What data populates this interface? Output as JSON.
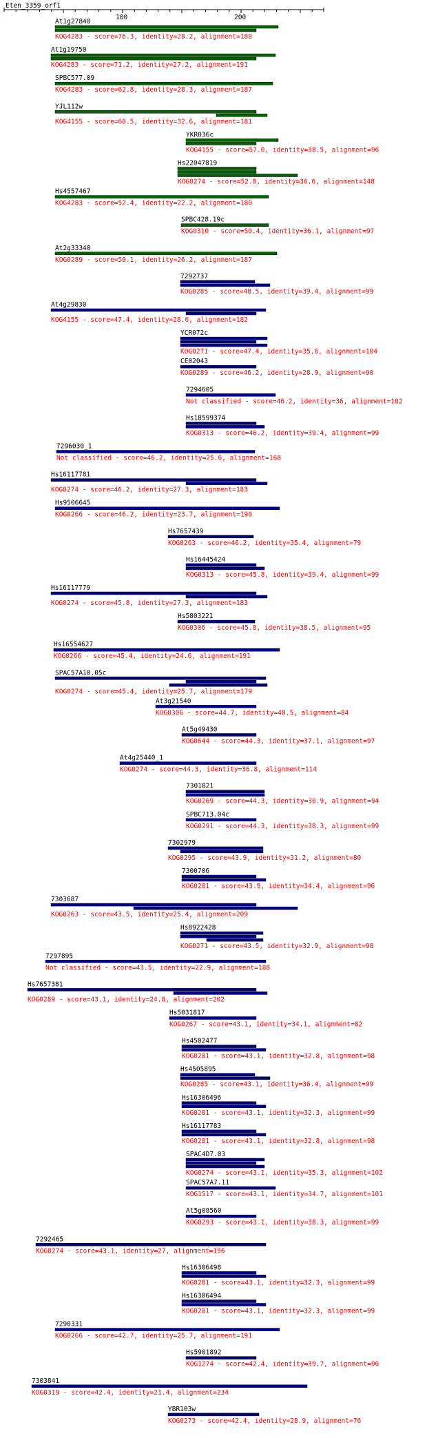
{
  "query": {
    "name": "Eten_3359_orf1",
    "ticks": [
      "100",
      "200"
    ]
  },
  "colors": {
    "axis": "#000000",
    "label": "#000000",
    "detail": "#ff0000",
    "bar_green": "#006400",
    "bar_blue": "#00008b"
  },
  "hits": [
    {
      "name": "At1g27840",
      "detail": "KOG4283 - score=76.3, identity=28.2, alignment=188",
      "color": "green",
      "lbl": 80,
      "bars": [
        [
          80,
          404,
          2
        ],
        [
          80,
          372,
          1
        ]
      ]
    },
    {
      "name": "At1g19750",
      "detail": "KOG4283 - score=71.2, identity=27.2, alignment=191",
      "color": "green",
      "lbl": 74,
      "bars": [
        [
          74,
          400,
          2
        ],
        [
          74,
          372,
          1
        ]
      ]
    },
    {
      "name": "SPBC577.09",
      "detail": "KOG4283 - score=62.8, identity=28.3, alignment=187",
      "color": "green",
      "lbl": 80,
      "bars": [
        [
          80,
          396,
          1
        ]
      ]
    },
    {
      "name": "YJL112w",
      "detail": "KOG4155 - score=60.5, identity=32.6, alignment=181",
      "color": "green",
      "lbl": 80,
      "bars": [
        [
          80,
          372,
          1
        ],
        [
          314,
          388,
          2
        ]
      ]
    },
    {
      "name": "YKR036c",
      "detail": "KOG4155 - score=57.0, identity=38.5, alignment=96",
      "color": "green",
      "lbl": 270,
      "bars": [
        [
          270,
          404,
          1
        ],
        [
          270,
          372,
          2
        ]
      ]
    },
    {
      "name": "Hs22047819",
      "detail": "KOG0274 - score=52.8, identity=36.6, alignment=148",
      "color": "green",
      "lbl": 258,
      "bars": [
        [
          258,
          372,
          1
        ],
        [
          258,
          372,
          1
        ],
        [
          258,
          432,
          1
        ]
      ]
    },
    {
      "name": "Hs4557467",
      "detail": "KOG4283 - score=52.4, identity=22.2, alignment=180",
      "color": "green",
      "lbl": 80,
      "bars": [
        [
          80,
          390,
          1
        ]
      ]
    },
    {
      "name": "SPBC428.19c",
      "detail": "KOG0310 - score=50.4, identity=36.1, alignment=97",
      "color": "green",
      "lbl": 263,
      "bars": [
        [
          263,
          390,
          1
        ]
      ]
    },
    {
      "name": "At2g33340",
      "detail": "KOG0289 - score=50.1, identity=26.2, alignment=187",
      "color": "green",
      "lbl": 80,
      "bars": [
        [
          80,
          402,
          1
        ]
      ]
    },
    {
      "name": "7292737",
      "detail": "KOG0285 - score=48.5, identity=39.4, alignment=99",
      "color": "blue",
      "lbl": 262,
      "bars": [
        [
          262,
          370,
          1
        ],
        [
          262,
          392,
          1
        ]
      ]
    },
    {
      "name": "At4g29830",
      "detail": "KOG4155 - score=47.4, identity=28.6, alignment=182",
      "color": "blue",
      "lbl": 74,
      "bars": [
        [
          74,
          386,
          1
        ],
        [
          270,
          372,
          1
        ]
      ]
    },
    {
      "name": "YCR072c",
      "detail": "KOG0271 - score=47.4, identity=35.6, alignment=104",
      "color": "blue",
      "lbl": 262,
      "bars": [
        [
          262,
          388,
          1
        ],
        [
          262,
          372,
          1
        ],
        [
          262,
          388,
          1
        ]
      ]
    },
    {
      "name": "CE02043",
      "detail": "KOG0289 - score=46.2, identity=28.9, alignment=90",
      "color": "blue",
      "lbl": 262,
      "bars": [
        [
          262,
          372,
          1
        ]
      ]
    },
    {
      "name": "7294605",
      "detail": "Not classified - score=46.2, identity=36, alignment=102",
      "color": "blue",
      "lbl": 270,
      "bars": [
        [
          270,
          400,
          1
        ]
      ]
    },
    {
      "name": "Hs18599374",
      "detail": "KOG0313 - score=46.2, identity=39.4, alignment=99",
      "color": "blue",
      "lbl": 270,
      "bars": [
        [
          270,
          372,
          1
        ],
        [
          270,
          384,
          1
        ]
      ]
    },
    {
      "name": "7296030_1",
      "detail": "Not classified - score=46.2, identity=25.6, alignment=168",
      "color": "blue",
      "lbl": 82,
      "bars": [
        [
          82,
          370,
          1
        ]
      ]
    },
    {
      "name": "Hs16117781",
      "detail": "KOG0274 - score=46.2, identity=27.3, alignment=183",
      "color": "blue",
      "lbl": 74,
      "bars": [
        [
          74,
          372,
          1
        ],
        [
          270,
          388,
          1
        ]
      ]
    },
    {
      "name": "Hs9506645",
      "detail": "KOG0266 - score=46.2, identity=23.7, alignment=190",
      "color": "blue",
      "lbl": 80,
      "bars": [
        [
          80,
          406,
          1
        ]
      ]
    },
    {
      "name": "Hs7657439",
      "detail": "KOG0263 - score=46.2, identity=35.4, alignment=79",
      "color": "blue",
      "lbl": 244,
      "bars": [
        [
          244,
          368,
          1
        ]
      ]
    },
    {
      "name": "Hs16445424",
      "detail": "KOG0313 - score=45.8, identity=39.4, alignment=99",
      "color": "blue",
      "lbl": 270,
      "bars": [
        [
          270,
          372,
          1
        ],
        [
          270,
          384,
          1
        ]
      ]
    },
    {
      "name": "Hs16117779",
      "detail": "KOG0274 - score=45.8, identity=27.3, alignment=183",
      "color": "blue",
      "lbl": 74,
      "bars": [
        [
          74,
          372,
          1
        ],
        [
          270,
          388,
          1
        ]
      ]
    },
    {
      "name": "Hs5803221",
      "detail": "KOG0306 - score=45.8, identity=38.5, alignment=95",
      "color": "blue",
      "lbl": 258,
      "bars": [
        [
          258,
          370,
          1
        ]
      ]
    },
    {
      "name": "Hs16554627",
      "detail": "KOG0266 - score=45.4, identity=24.6, alignment=191",
      "color": "blue",
      "lbl": 78,
      "bars": [
        [
          78,
          406,
          1
        ]
      ]
    },
    {
      "name": "SPAC57A10.05c",
      "detail": "KOG0274 - score=45.4, identity=25.7, alignment=179",
      "color": "blue",
      "lbl": 80,
      "bars": [
        [
          80,
          386,
          1
        ],
        [
          270,
          372,
          1
        ],
        [
          246,
          388,
          1
        ]
      ]
    },
    {
      "name": "At3g21540",
      "detail": "KOG0306 - score=44.7, identity=40.5, alignment=84",
      "color": "blue",
      "lbl": 226,
      "bars": [
        [
          226,
          372,
          1
        ]
      ]
    },
    {
      "name": "At5g49430",
      "detail": "KOG0644 - score=44.3, identity=37.1, alignment=97",
      "color": "blue",
      "lbl": 264,
      "bars": [
        [
          264,
          372,
          1
        ]
      ]
    },
    {
      "name": "At4g25440_1",
      "detail": "KOG0274 - score=44.3, identity=36.8, alignment=114",
      "color": "blue",
      "lbl": 174,
      "bars": [
        [
          174,
          372,
          1
        ]
      ]
    },
    {
      "name": "7301821",
      "detail": "KOG0269 - score=44.3, identity=30.9, alignment=94",
      "color": "blue",
      "lbl": 270,
      "bars": [
        [
          270,
          384,
          1
        ],
        [
          270,
          384,
          1
        ]
      ]
    },
    {
      "name": "SPBC713.04c",
      "detail": "KOG0291 - score=44.3, identity=38.3, alignment=99",
      "color": "blue",
      "lbl": 270,
      "bars": [
        [
          270,
          372,
          1
        ]
      ]
    },
    {
      "name": "7302979",
      "detail": "KOG0295 - score=43.9, identity=31.2, alignment=80",
      "color": "blue",
      "lbl": 244,
      "bars": [
        [
          244,
          382,
          1
        ],
        [
          262,
          382,
          1
        ]
      ]
    },
    {
      "name": "7300706",
      "detail": "KOG0281 - score=43.9, identity=34.4, alignment=96",
      "color": "blue",
      "lbl": 264,
      "bars": [
        [
          264,
          372,
          1
        ],
        [
          264,
          386,
          1
        ]
      ]
    },
    {
      "name": "7303687",
      "detail": "KOG0263 - score=43.5, identity=25.4, alignment=209",
      "color": "blue",
      "lbl": 74,
      "bars": [
        [
          74,
          372,
          1
        ],
        [
          194,
          432,
          1
        ]
      ]
    },
    {
      "name": "Hs8922428",
      "detail": "KOG0271 - score=43.5, identity=32.9, alignment=98",
      "color": "blue",
      "lbl": 262,
      "bars": [
        [
          262,
          382,
          1
        ],
        [
          262,
          372,
          1
        ],
        [
          300,
          382,
          1
        ]
      ]
    },
    {
      "name": "7297895",
      "detail": "Not classified - score=43.5, identity=22.9, alignment=188",
      "color": "blue",
      "lbl": 66,
      "bars": [
        [
          66,
          386,
          1
        ]
      ]
    },
    {
      "name": "Hs7657381",
      "detail": "KOG0289 - score=43.1, identity=24.8, alignment=202",
      "color": "blue",
      "lbl": 40,
      "bars": [
        [
          40,
          372,
          1
        ],
        [
          252,
          388,
          1
        ]
      ]
    },
    {
      "name": "Hs5031817",
      "detail": "KOG0267 - score=43.1, identity=34.1, alignment=82",
      "color": "blue",
      "lbl": 246,
      "bars": [
        [
          246,
          372,
          1
        ]
      ]
    },
    {
      "name": "Hs4502477",
      "detail": "KOG0281 - score=43.1, identity=32.8, alignment=98",
      "color": "blue",
      "lbl": 264,
      "bars": [
        [
          264,
          372,
          1
        ],
        [
          264,
          386,
          1
        ]
      ]
    },
    {
      "name": "Hs4505895",
      "detail": "KOG0285 - score=43.1, identity=36.4, alignment=99",
      "color": "blue",
      "lbl": 262,
      "bars": [
        [
          262,
          370,
          1
        ],
        [
          262,
          392,
          1
        ]
      ]
    },
    {
      "name": "Hs16306496",
      "detail": "KOG0281 - score=43.1, identity=32.3, alignment=99",
      "color": "blue",
      "lbl": 264,
      "bars": [
        [
          264,
          372,
          1
        ],
        [
          264,
          386,
          1
        ]
      ]
    },
    {
      "name": "Hs16117783",
      "detail": "KOG0281 - score=43.1, identity=32.8, alignment=98",
      "color": "blue",
      "lbl": 264,
      "bars": [
        [
          264,
          372,
          1
        ],
        [
          264,
          386,
          1
        ]
      ]
    },
    {
      "name": "SPAC4D7.03",
      "detail": "KOG0274 - score=43.1, identity=35.3, alignment=102",
      "color": "blue",
      "lbl": 270,
      "bars": [
        [
          270,
          384,
          1
        ],
        [
          270,
          372,
          1
        ],
        [
          270,
          384,
          1
        ]
      ]
    },
    {
      "name": "SPAC57A7.11",
      "detail": "KOG1517 - score=43.1, identity=34.7, alignment=101",
      "color": "blue",
      "lbl": 270,
      "bars": [
        [
          270,
          400,
          1
        ]
      ]
    },
    {
      "name": "At5g08560",
      "detail": "KOG0293 - score=43.1, identity=38.3, alignment=99",
      "color": "blue",
      "lbl": 270,
      "bars": [
        [
          270,
          372,
          1
        ]
      ]
    },
    {
      "name": "7292465",
      "detail": "KOG0274 - score=43.1, identity=27, alignment=196",
      "color": "blue",
      "lbl": 52,
      "bars": [
        [
          52,
          386,
          1
        ]
      ]
    },
    {
      "name": "Hs16306498",
      "detail": "KOG0281 - score=43.1, identity=32.3, alignment=99",
      "color": "blue",
      "lbl": 264,
      "bars": [
        [
          264,
          372,
          1
        ],
        [
          264,
          386,
          1
        ]
      ]
    },
    {
      "name": "Hs16306494",
      "detail": "KOG0281 - score=43.1, identity=32.3, alignment=99",
      "color": "blue",
      "lbl": 264,
      "bars": [
        [
          264,
          372,
          1
        ],
        [
          264,
          386,
          1
        ]
      ]
    },
    {
      "name": "7290331",
      "detail": "KOG0266 - score=42.7, identity=25.7, alignment=191",
      "color": "blue",
      "lbl": 80,
      "bars": [
        [
          80,
          406,
          1
        ]
      ]
    },
    {
      "name": "Hs5901892",
      "detail": "KOG1274 - score=42.4, identity=39.7, alignment=96",
      "color": "blue",
      "lbl": 270,
      "bars": [
        [
          270,
          372,
          1
        ]
      ]
    },
    {
      "name": "7303841",
      "detail": "KOG0319 - score=42.4, identity=21.4, alignment=234",
      "color": "blue",
      "lbl": 46,
      "bars": [
        [
          46,
          446,
          1
        ]
      ]
    },
    {
      "name": "YBR103w",
      "detail": "KOG0273 - score=42.4, identity=28.9, alignment=76",
      "color": "blue",
      "lbl": 244,
      "bars": [
        [
          244,
          376,
          1
        ]
      ]
    }
  ]
}
